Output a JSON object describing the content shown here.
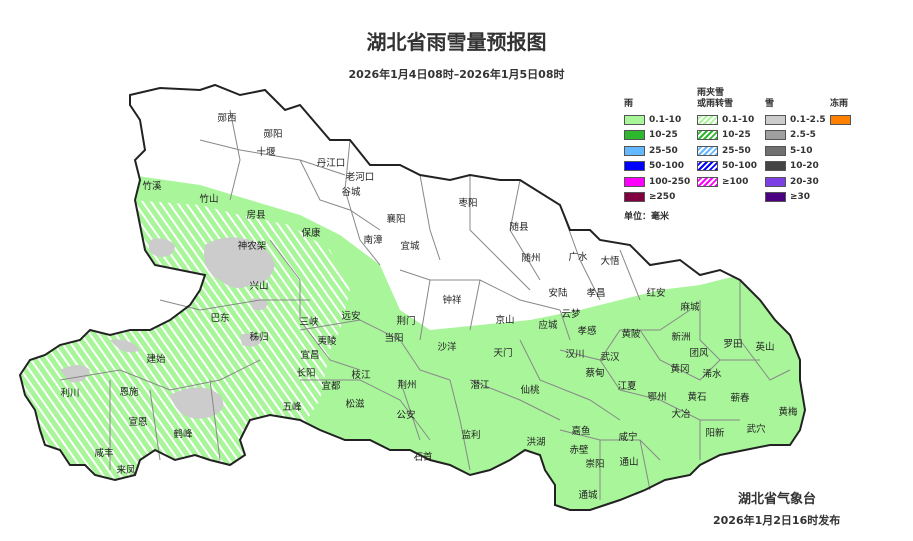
{
  "header": {
    "title": "湖北省雨雪量预报图",
    "subtitle": "2026年1月4日08时–2026年1月5日08时"
  },
  "legend": {
    "groups": [
      {
        "title": "雨",
        "items": [
          {
            "label": "0.1-10",
            "color": "#a8f59a"
          },
          {
            "label": "10-25",
            "color": "#2eb82e"
          },
          {
            "label": "25-50",
            "color": "#63b8ff"
          },
          {
            "label": "50-100",
            "color": "#0000ff"
          },
          {
            "label": "100-250",
            "color": "#ff00ff"
          },
          {
            "label": "≥250",
            "color": "#800040"
          }
        ]
      },
      {
        "title": "雨夹雪\n或雨转雪",
        "items": [
          {
            "label": "0.1-10",
            "color": "#a8f59a",
            "hatched": true
          },
          {
            "label": "10-25",
            "color": "#2eb82e",
            "hatched": true
          },
          {
            "label": "25-50",
            "color": "#63b8ff",
            "hatched": true
          },
          {
            "label": "50-100",
            "color": "#0000ff",
            "hatched": true
          },
          {
            "label": "≥100",
            "color": "#ff00ff",
            "hatched": true
          }
        ]
      },
      {
        "title": "雪",
        "items": [
          {
            "label": "0.1-2.5",
            "color": "#cccccc"
          },
          {
            "label": "2.5-5",
            "color": "#a0a0a0"
          },
          {
            "label": "5-10",
            "color": "#707070"
          },
          {
            "label": "10-20",
            "color": "#444444"
          },
          {
            "label": "20-30",
            "color": "#7b3fe4"
          },
          {
            "label": "≥30",
            "color": "#4b0082"
          }
        ]
      },
      {
        "title": "冻雨",
        "items": [
          {
            "label": "",
            "color": "#ff8000"
          }
        ]
      }
    ],
    "unit": "单位：毫米"
  },
  "map": {
    "cities": [
      "郧西",
      "郧阳",
      "十堰",
      "丹江口",
      "老河口",
      "谷城",
      "竹溪",
      "竹山",
      "房县",
      "保康",
      "南漳",
      "襄阳",
      "宜城",
      "枣阳",
      "随县",
      "随州",
      "广水",
      "大悟",
      "神农架",
      "兴山",
      "巴东",
      "秭归",
      "三峡",
      "远安",
      "当阳",
      "夷陵",
      "宜昌",
      "长阳",
      "宜都",
      "枝江",
      "五峰",
      "松滋",
      "建始",
      "利川",
      "恩施",
      "宣恩",
      "鹤峰",
      "咸丰",
      "来凤",
      "钟祥",
      "京山",
      "荆门",
      "安陆",
      "孝昌",
      "红安",
      "云梦",
      "应城",
      "孝感",
      "沙洋",
      "天门",
      "汉川",
      "武汉",
      "蔡甸",
      "黄陂",
      "麻城",
      "新洲",
      "罗田",
      "英山",
      "团风",
      "黄冈",
      "浠水",
      "荆州",
      "潜江",
      "仙桃",
      "江夏",
      "鄂州",
      "黄石",
      "蕲春",
      "大冶",
      "黄梅",
      "公安",
      "监利",
      "洪湖",
      "嘉鱼",
      "咸宁",
      "赤壁",
      "崇阳",
      "通山",
      "阳新",
      "武穴",
      "石首",
      "通城"
    ],
    "colors": {
      "rain_light": "#a8f59a",
      "snow_light": "#cccccc",
      "border": "#222222",
      "county_line": "#888888"
    }
  },
  "footer": {
    "issuer": "湖北省气象台",
    "issued": "2026年1月2日16时发布"
  }
}
